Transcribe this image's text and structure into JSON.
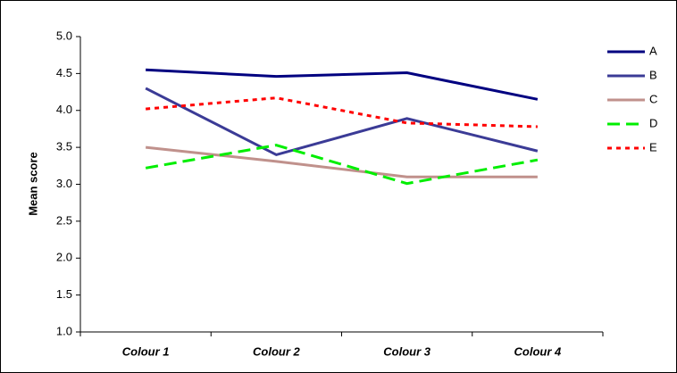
{
  "chart_data": {
    "type": "line",
    "y_label": "Mean score",
    "categories": [
      "Colour 1",
      "Colour 2",
      "Colour 3",
      "Colour 4"
    ],
    "series": [
      {
        "name": "A",
        "color": "#000080",
        "dash": "solid",
        "values": [
          4.55,
          4.46,
          4.51,
          4.15
        ]
      },
      {
        "name": "B",
        "color": "#3b3b96",
        "dash": "solid",
        "values": [
          4.3,
          3.4,
          3.89,
          3.45
        ]
      },
      {
        "name": "C",
        "color": "#c0918c",
        "dash": "solid",
        "values": [
          3.5,
          3.31,
          3.1,
          3.1
        ]
      },
      {
        "name": "D",
        "color": "#00ee00",
        "dash": "dashed",
        "values": [
          3.22,
          3.53,
          3.01,
          3.33
        ]
      },
      {
        "name": "E",
        "color": "#ff0000",
        "dash": "dotted",
        "values": [
          4.02,
          4.17,
          3.83,
          3.78
        ]
      }
    ],
    "ylim": [
      1,
      5
    ],
    "yticks": [
      {
        "value": 1,
        "label": "1.0"
      },
      1.5,
      {
        "value": 2,
        "label": "2.0"
      },
      2.5,
      {
        "value": 3,
        "label": "3.0"
      },
      3.5,
      {
        "value": 4,
        "label": "4.0"
      },
      4.5,
      {
        "value": 5,
        "label": "5.0"
      }
    ],
    "grid": false,
    "legend": "right"
  }
}
